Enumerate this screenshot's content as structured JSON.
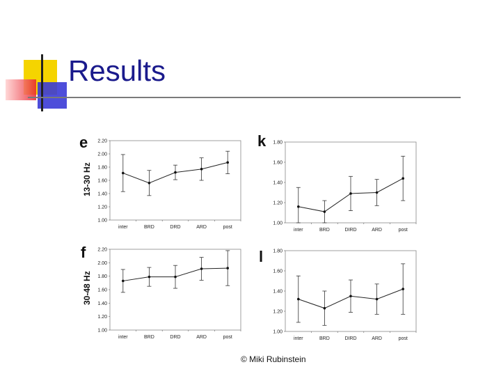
{
  "slide": {
    "title": "Results",
    "footer": "© Miki Rubinstein",
    "colors": {
      "title": "#1a1a8c",
      "deco_yellow": "#f5d400",
      "deco_red": "#e8232e",
      "deco_blue": "#3b3bd6"
    }
  },
  "labels": {
    "e": "e",
    "k": "k",
    "f": "f",
    "l": "l",
    "row1_ylabel": "13-30 Hz",
    "row2_ylabel": "30-48 Hz"
  },
  "chart_data": [
    {
      "id": "e",
      "type": "line",
      "title": "",
      "xlabel": "",
      "ylabel": "13-30 Hz",
      "categories": [
        "inter",
        "BRD",
        "DRD",
        "ARD",
        "post"
      ],
      "values": [
        1.71,
        1.56,
        1.72,
        1.77,
        1.87
      ],
      "error": [
        0.28,
        0.19,
        0.11,
        0.17,
        0.17
      ],
      "ylim": [
        1.0,
        2.2
      ],
      "yticks": [
        "1.00",
        "1.20",
        "1.40",
        "1.60",
        "1.80",
        "2.00",
        "2.20"
      ]
    },
    {
      "id": "k",
      "type": "line",
      "title": "",
      "xlabel": "",
      "ylabel": "",
      "categories": [
        "inter",
        "BRD",
        "DIRD",
        "ARD",
        "post"
      ],
      "values": [
        1.16,
        1.11,
        1.29,
        1.3,
        1.44
      ],
      "error": [
        0.19,
        0.11,
        0.17,
        0.13,
        0.22
      ],
      "ylim": [
        1.0,
        1.8
      ],
      "yticks": [
        "1.00",
        "1.20",
        "1.40",
        "1.60",
        "1.80"
      ]
    },
    {
      "id": "f",
      "type": "line",
      "title": "",
      "xlabel": "",
      "ylabel": "30-48 Hz",
      "categories": [
        "inter",
        "BRD",
        "DRD",
        "ARD",
        "post"
      ],
      "values": [
        1.73,
        1.79,
        1.79,
        1.91,
        1.92
      ],
      "error": [
        0.17,
        0.14,
        0.17,
        0.17,
        0.26
      ],
      "ylim": [
        1.0,
        2.2
      ],
      "yticks": [
        "1.00",
        "1.20",
        "1.40",
        "1.60",
        "1.80",
        "2.00",
        "2.20"
      ]
    },
    {
      "id": "l",
      "type": "line",
      "title": "",
      "xlabel": "",
      "ylabel": "",
      "categories": [
        "inter",
        "BRD",
        "DIRD",
        "ARD",
        "post"
      ],
      "values": [
        1.32,
        1.23,
        1.35,
        1.32,
        1.42
      ],
      "error": [
        0.23,
        0.17,
        0.16,
        0.15,
        0.25
      ],
      "ylim": [
        1.0,
        1.8
      ],
      "yticks": [
        "1.00",
        "1.20",
        "1.40",
        "1.60",
        "1.80"
      ]
    }
  ]
}
